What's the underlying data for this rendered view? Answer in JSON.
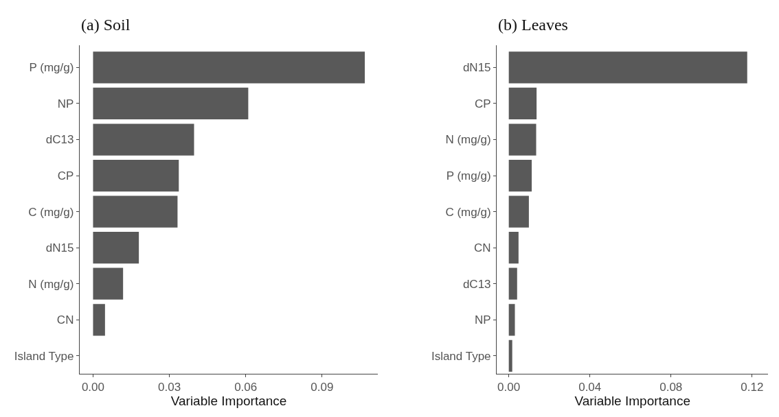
{
  "chart_data": [
    {
      "type": "bar",
      "orientation": "horizontal",
      "title": "(a) Soil",
      "xlabel": "Variable Importance",
      "categories": [
        "P (mg/g)",
        "NP",
        "dC13",
        "CP",
        "C (mg/g)",
        "dN15",
        "N (mg/g)",
        "CN",
        "Island Type"
      ],
      "values": [
        0.1068,
        0.061,
        0.0397,
        0.0337,
        0.0332,
        0.018,
        0.0118,
        0.0047,
        0
      ],
      "color": "#595959",
      "xlim": [
        -0.0053,
        0.112
      ],
      "xticks": [
        {
          "value": 0,
          "label": "0.00"
        },
        0.03,
        0.06,
        0.09
      ],
      "legend": false
    },
    {
      "type": "bar",
      "orientation": "horizontal",
      "title": "(b) Leaves",
      "xlabel": "Variable Importance",
      "categories": [
        "dN15",
        "CP",
        "N (mg/g)",
        "P (mg/g)",
        "C (mg/g)",
        "CN",
        "dC13",
        "NP",
        "Island Type"
      ],
      "values": [
        0.1176,
        0.0137,
        0.0135,
        0.0113,
        0.0099,
        0.0048,
        0.0041,
        0.003,
        0.0017
      ],
      "color": "#595959",
      "xlim": [
        -0.006,
        0.128
      ],
      "xticks": [
        {
          "value": 0,
          "label": "0.00"
        },
        0.04,
        0.08,
        0.12
      ],
      "legend": false
    }
  ]
}
